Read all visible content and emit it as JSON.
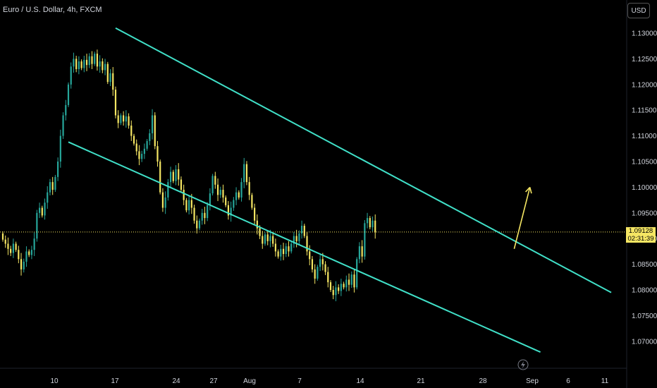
{
  "header": {
    "title": "Euro / U.S. Dollar, 4h, FXCM",
    "currency": "USD"
  },
  "price_label": {
    "price": "1.09128",
    "countdown": "02:31:39"
  },
  "colors": {
    "bull": "#26a69a",
    "bear": "#f5e663",
    "channel": "#40e0c8",
    "arrow": "#f5e663",
    "bg": "#000000"
  },
  "chart_data": {
    "type": "candlestick",
    "title": "Euro / U.S. Dollar, 4h, FXCM",
    "ylim": [
      1.0665,
      1.1315
    ],
    "y_ticks": [
      "1.13000",
      "1.12500",
      "1.12000",
      "1.11500",
      "1.11000",
      "1.10500",
      "1.10000",
      "1.09500",
      "1.09000",
      "1.08500",
      "1.08000",
      "1.07500",
      "1.07000"
    ],
    "x_ticks": [
      "10",
      "17",
      "24",
      "27",
      "Aug",
      "7",
      "14",
      "21",
      "28",
      "Sep",
      "6",
      "11"
    ],
    "last_price": 1.09128,
    "series": [
      {
        "values": [
          [
            1.091,
            1.0898
          ],
          [
            1.0898,
            1.089
          ],
          [
            1.089,
            1.088
          ],
          [
            1.088,
            1.0872
          ],
          [
            1.0872,
            1.089
          ],
          [
            1.089,
            1.0878
          ],
          [
            1.0878,
            1.086
          ],
          [
            1.086,
            1.084
          ],
          [
            1.084,
            1.0855
          ],
          [
            1.0855,
            1.0875
          ],
          [
            1.0875,
            1.0868
          ],
          [
            1.0868,
            1.0878
          ],
          [
            1.0878,
            1.09
          ],
          [
            1.09,
            1.095
          ],
          [
            1.095,
            1.096
          ],
          [
            1.096,
            1.0945
          ],
          [
            1.0945,
            1.097
          ],
          [
            1.097,
            1.099
          ],
          [
            1.099,
            1.101
          ],
          [
            1.101,
            1.0995
          ],
          [
            1.0995,
            1.102
          ],
          [
            1.102,
            1.105
          ],
          [
            1.105,
            1.11
          ],
          [
            1.11,
            1.114
          ],
          [
            1.114,
            1.116
          ],
          [
            1.116,
            1.12
          ],
          [
            1.12,
            1.1235
          ],
          [
            1.1235,
            1.125
          ],
          [
            1.125,
            1.123
          ],
          [
            1.123,
            1.1245
          ],
          [
            1.1245,
            1.1232
          ],
          [
            1.1232,
            1.1248
          ],
          [
            1.1248,
            1.1238
          ],
          [
            1.1238,
            1.1255
          ],
          [
            1.1255,
            1.124
          ],
          [
            1.124,
            1.126
          ],
          [
            1.126,
            1.1235
          ],
          [
            1.1235,
            1.1245
          ],
          [
            1.1245,
            1.1228
          ],
          [
            1.1228,
            1.124
          ],
          [
            1.124,
            1.1205
          ],
          [
            1.1205,
            1.1222
          ],
          [
            1.1222,
            1.119
          ],
          [
            1.119,
            1.114
          ],
          [
            1.114,
            1.1125
          ],
          [
            1.1125,
            1.114
          ],
          [
            1.114,
            1.1128
          ],
          [
            1.1128,
            1.1138
          ],
          [
            1.1138,
            1.112
          ],
          [
            1.112,
            1.11
          ],
          [
            1.11,
            1.1085
          ],
          [
            1.1085,
            1.107
          ],
          [
            1.107,
            1.1055
          ],
          [
            1.1055,
            1.1065
          ],
          [
            1.1065,
            1.1075
          ],
          [
            1.1075,
            1.109
          ],
          [
            1.109,
            1.1105
          ],
          [
            1.1105,
            1.114
          ],
          [
            1.114,
            1.108
          ],
          [
            1.108,
            1.105
          ],
          [
            1.105,
            1.099
          ],
          [
            1.099,
            1.096
          ],
          [
            1.096,
            1.098
          ],
          [
            1.098,
            1.101
          ],
          [
            1.101,
            1.103
          ],
          [
            1.103,
            1.1012
          ],
          [
            1.1012,
            1.1035
          ],
          [
            1.1035,
            1.1015
          ],
          [
            1.1015,
            1.0995
          ],
          [
            1.0995,
            1.0975
          ],
          [
            1.0975,
            1.0955
          ],
          [
            1.0955,
            1.0975
          ],
          [
            1.0975,
            1.096
          ],
          [
            1.096,
            1.0935
          ],
          [
            1.0935,
            1.092
          ],
          [
            1.092,
            1.0935
          ],
          [
            1.0935,
            1.095
          ],
          [
            1.095,
            1.094
          ],
          [
            1.094,
            1.0965
          ],
          [
            1.0965,
            1.0988
          ],
          [
            1.0988,
            1.1022
          ],
          [
            1.1022,
            1.1005
          ],
          [
            1.1005,
            1.0985
          ],
          [
            1.0985,
            1.0995
          ],
          [
            1.0995,
            1.098
          ],
          [
            1.098,
            1.0965
          ],
          [
            1.0965,
            1.0945
          ],
          [
            1.0945,
            1.096
          ],
          [
            1.096,
            1.0975
          ],
          [
            1.0975,
            1.099
          ],
          [
            1.099,
            1.098
          ],
          [
            1.098,
            1.101
          ],
          [
            1.101,
            1.1045
          ],
          [
            1.1045,
            1.101
          ],
          [
            1.101,
            1.0985
          ],
          [
            1.0985,
            1.096
          ],
          [
            1.096,
            1.0935
          ],
          [
            1.0935,
            1.092
          ],
          [
            1.092,
            1.0905
          ],
          [
            1.0905,
            1.089
          ],
          [
            1.089,
            1.0908
          ],
          [
            1.0908,
            1.0895
          ],
          [
            1.0895,
            1.0905
          ],
          [
            1.0905,
            1.089
          ],
          [
            1.089,
            1.0875
          ],
          [
            1.0875,
            1.0865
          ],
          [
            1.0865,
            1.088
          ],
          [
            1.088,
            1.087
          ],
          [
            1.087,
            1.0885
          ],
          [
            1.0885,
            1.0875
          ],
          [
            1.0875,
            1.089
          ],
          [
            1.089,
            1.0905
          ],
          [
            1.0905,
            1.0895
          ],
          [
            1.0895,
            1.091
          ],
          [
            1.091,
            1.0925
          ],
          [
            1.0925,
            1.0905
          ],
          [
            1.0905,
            1.0875
          ],
          [
            1.0875,
            1.086
          ],
          [
            1.086,
            1.084
          ],
          [
            1.084,
            1.0822
          ],
          [
            1.0822,
            1.0845
          ],
          [
            1.0845,
            1.086
          ],
          [
            1.086,
            1.085
          ],
          [
            1.085,
            1.0835
          ],
          [
            1.0835,
            1.0815
          ],
          [
            1.0815,
            1.08
          ],
          [
            1.08,
            1.079
          ],
          [
            1.079,
            1.0805
          ],
          [
            1.0805,
            1.0798
          ],
          [
            1.0798,
            1.0812
          ],
          [
            1.0812,
            1.0805
          ],
          [
            1.0805,
            1.082
          ],
          [
            1.082,
            1.081
          ],
          [
            1.081,
            1.083
          ],
          [
            1.083,
            1.0805
          ],
          [
            1.0805,
            1.086
          ],
          [
            1.086,
            1.0885
          ],
          [
            1.0885,
            1.0865
          ],
          [
            1.0865,
            1.093
          ],
          [
            1.093,
            1.094
          ],
          [
            1.094,
            1.0922
          ],
          [
            1.0922,
            1.0935
          ],
          [
            1.0935,
            1.0912
          ]
        ]
      }
    ],
    "annotations": {
      "channel_upper": [
        {
          "bar": 43,
          "price": 1.131
        },
        {
          "bar": 232,
          "price": 1.0795
        }
      ],
      "channel_lower": [
        {
          "bar": 25,
          "price": 1.1088
        },
        {
          "bar": 205,
          "price": 1.0679
        }
      ],
      "arrow": [
        {
          "bar": 195,
          "price": 1.088
        },
        {
          "bar": 201,
          "price": 1.1
        }
      ]
    }
  }
}
